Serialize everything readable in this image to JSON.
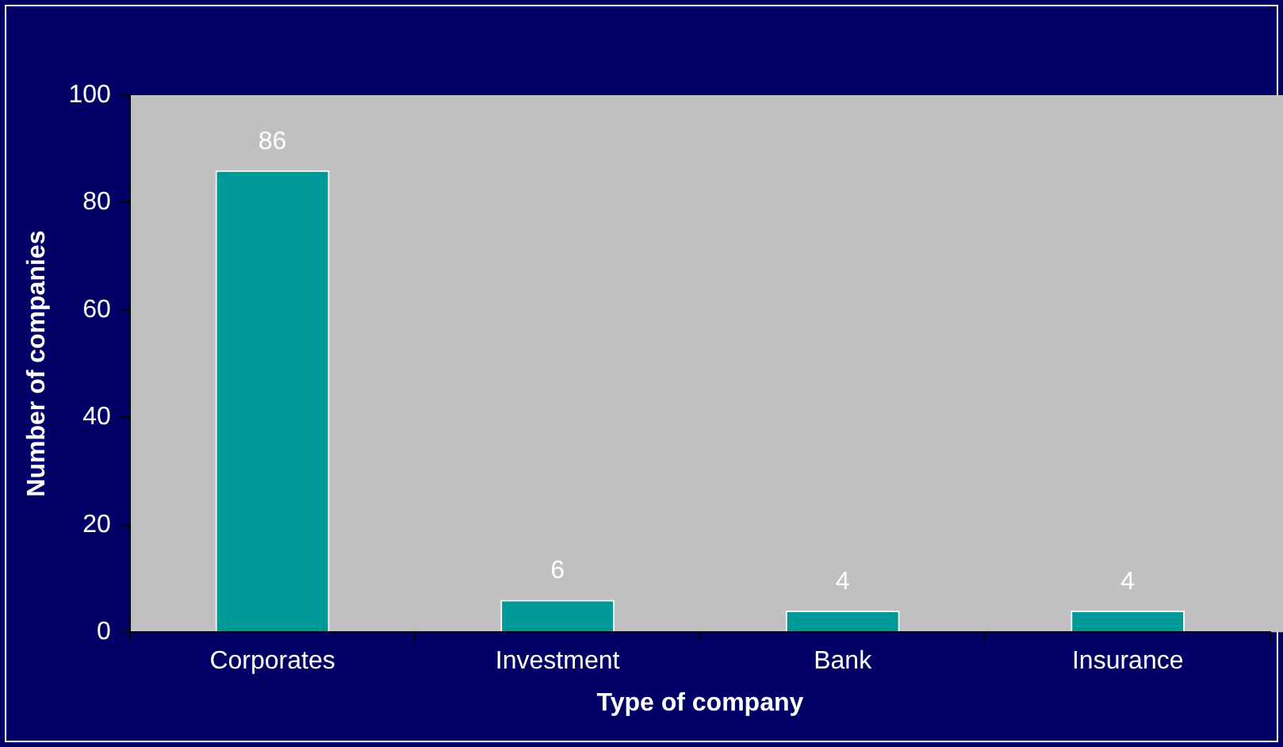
{
  "chart_data": {
    "type": "bar",
    "xlabel": "Type of company",
    "ylabel": "Number of companies",
    "categories": [
      "Corporates",
      "Investment",
      "Bank",
      "Insurance"
    ],
    "values": [
      86,
      6,
      4,
      4
    ],
    "color": "#009999",
    "ylim": [
      0,
      100
    ],
    "yticks": [
      0,
      20,
      40,
      60,
      80,
      100
    ],
    "grid": false,
    "legend": false,
    "data_labels": true
  }
}
